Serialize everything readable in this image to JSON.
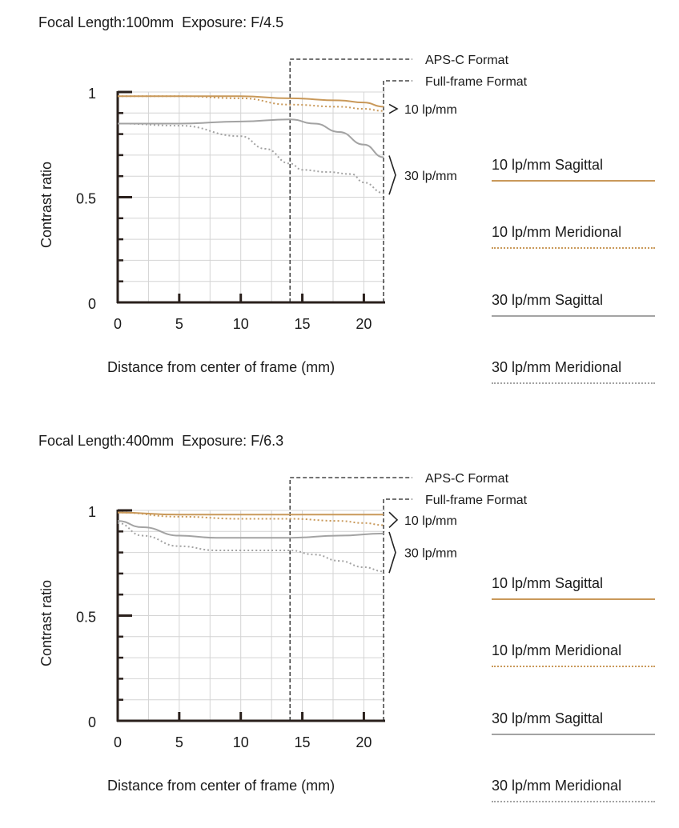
{
  "colors": {
    "sagittal_10": "#c9995a",
    "meridional_10": "#c9995a",
    "sagittal_30": "#a3a3a3",
    "meridional_30": "#a3a3a3",
    "axis": "#2a201c",
    "grid": "#d4d4d4"
  },
  "legend": {
    "items": [
      {
        "label": "10 lp/mm Sagittal",
        "style": "gold-solid"
      },
      {
        "label": "10 lp/mm Meridional",
        "style": "gold-dot"
      },
      {
        "label": "30 lp/mm Sagittal",
        "style": "gray-solid"
      },
      {
        "label": "30 lp/mm Meridional",
        "style": "gray-dot"
      }
    ]
  },
  "annotations": {
    "apsc": "APS-C Format",
    "fullframe": "Full-frame Format",
    "lp10": "10 lp/mm",
    "lp30": "30 lp/mm"
  },
  "chart_data": [
    {
      "type": "line",
      "title": "Focal Length:100mm  Exposure: F/4.5",
      "xlabel": "Distance from center of frame (mm)",
      "ylabel": "Contrast ratio",
      "xlim": [
        0,
        21.6
      ],
      "ylim": [
        0,
        1
      ],
      "xticks": [
        "0",
        "5",
        "10",
        "15",
        "20"
      ],
      "yticks": [
        "0",
        "0.5",
        "1"
      ],
      "format_lines": {
        "APS-C Format": 14,
        "Full-frame Format": 21.6
      },
      "series": [
        {
          "name": "10 lp/mm Sagittal",
          "x": [
            0,
            5,
            10,
            14,
            18,
            20,
            21.6
          ],
          "y": [
            0.98,
            0.98,
            0.98,
            0.97,
            0.96,
            0.95,
            0.93
          ]
        },
        {
          "name": "10 lp/mm Meridional",
          "x": [
            0,
            5,
            10,
            14,
            18,
            20,
            21.6
          ],
          "y": [
            0.98,
            0.98,
            0.97,
            0.94,
            0.93,
            0.92,
            0.91
          ]
        },
        {
          "name": "30 lp/mm Sagittal",
          "x": [
            0,
            5,
            10,
            14,
            16,
            18,
            20,
            21.6
          ],
          "y": [
            0.85,
            0.85,
            0.86,
            0.87,
            0.85,
            0.81,
            0.75,
            0.69
          ]
        },
        {
          "name": "30 lp/mm Meridional",
          "x": [
            0,
            5,
            10,
            12,
            14,
            15,
            17,
            19,
            20,
            21.6
          ],
          "y": [
            0.85,
            0.84,
            0.79,
            0.73,
            0.66,
            0.63,
            0.62,
            0.61,
            0.57,
            0.52
          ]
        }
      ]
    },
    {
      "type": "line",
      "title": "Focal Length:400mm  Exposure: F/6.3",
      "xlabel": "Distance from center of frame (mm)",
      "ylabel": "Contrast ratio",
      "xlim": [
        0,
        21.6
      ],
      "ylim": [
        0,
        1
      ],
      "xticks": [
        "0",
        "5",
        "10",
        "15",
        "20"
      ],
      "yticks": [
        "0",
        "0.5",
        "1"
      ],
      "format_lines": {
        "APS-C Format": 14,
        "Full-frame Format": 21.6
      },
      "series": [
        {
          "name": "10 lp/mm Sagittal",
          "x": [
            0,
            5,
            10,
            15,
            20,
            21.6
          ],
          "y": [
            0.99,
            0.98,
            0.98,
            0.98,
            0.98,
            0.98
          ]
        },
        {
          "name": "10 lp/mm Meridional",
          "x": [
            0,
            5,
            10,
            14,
            18,
            20,
            21.6
          ],
          "y": [
            0.99,
            0.97,
            0.96,
            0.96,
            0.95,
            0.94,
            0.93
          ]
        },
        {
          "name": "30 lp/mm Sagittal",
          "x": [
            0,
            2,
            5,
            8,
            10,
            14,
            18,
            21.6
          ],
          "y": [
            0.95,
            0.92,
            0.88,
            0.87,
            0.87,
            0.87,
            0.88,
            0.89
          ]
        },
        {
          "name": "30 lp/mm Meridional",
          "x": [
            0,
            2,
            5,
            8,
            10,
            14,
            16,
            18,
            20,
            21.6
          ],
          "y": [
            0.94,
            0.88,
            0.83,
            0.81,
            0.81,
            0.81,
            0.79,
            0.76,
            0.73,
            0.71
          ]
        }
      ]
    }
  ]
}
